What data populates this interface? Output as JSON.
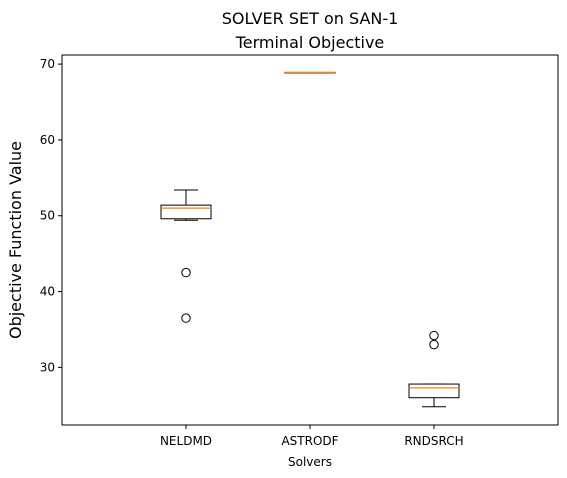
{
  "chart_data": {
    "type": "box",
    "title": "SOLVER SET on SAN-1",
    "subtitle": "Terminal Objective",
    "xlabel": "Solvers",
    "ylabel": "Objective Function Value",
    "categories": [
      "NELDMD",
      "ASTRODF",
      "RNDSRCH"
    ],
    "ylim": [
      22.4,
      71.2
    ],
    "yticks": [
      30,
      40,
      50,
      60,
      70
    ],
    "grid": false,
    "boxes": [
      {
        "name": "NELDMD",
        "whisker_low": 49.4,
        "q1": 49.6,
        "median": 51.0,
        "q3": 51.4,
        "whisker_high": 53.4,
        "outliers": [
          42.5,
          36.5
        ]
      },
      {
        "name": "ASTRODF",
        "whisker_low": 68.9,
        "q1": 68.9,
        "median": 68.9,
        "q3": 68.9,
        "whisker_high": 68.9,
        "outliers": []
      },
      {
        "name": "RNDSRCH",
        "whisker_low": 24.8,
        "q1": 26.0,
        "median": 27.3,
        "q3": 27.8,
        "whisker_high": 27.8,
        "outliers": [
          34.2,
          33.0
        ]
      }
    ],
    "colors": {
      "box": "#000000",
      "median": "#ff7f0e",
      "outlier": "#000000"
    }
  }
}
